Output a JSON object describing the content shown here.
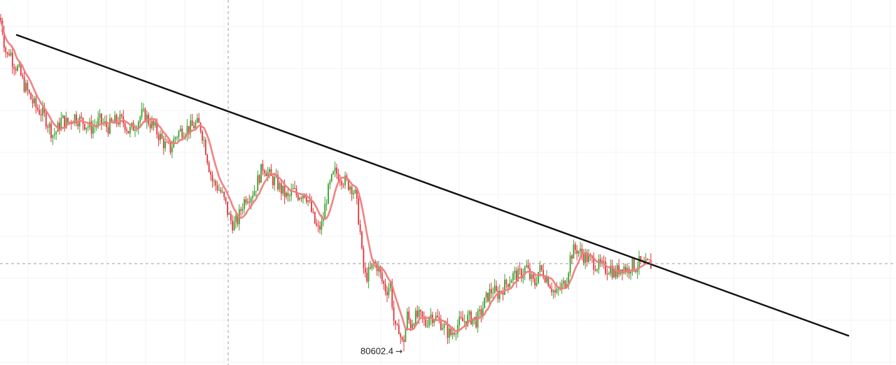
{
  "chart_data": {
    "type": "candlestick",
    "grid": true,
    "colors": {
      "up": "#3aa02c",
      "down": "#e0333b",
      "moving_average": "#f07c7c",
      "trendline": "#111111",
      "crosshair": "#9a9ea6"
    },
    "y_range": [
      80000,
      96200
    ],
    "price_path": [
      [
        0,
        95400
      ],
      [
        3,
        95050
      ],
      [
        6,
        94300
      ],
      [
        10,
        93650
      ],
      [
        14,
        94000
      ],
      [
        18,
        93500
      ],
      [
        22,
        93300
      ],
      [
        28,
        93000
      ],
      [
        34,
        92450
      ],
      [
        40,
        92100
      ],
      [
        46,
        91700
      ],
      [
        52,
        91400
      ],
      [
        58,
        91250
      ],
      [
        64,
        91000
      ],
      [
        70,
        90600
      ],
      [
        76,
        90200
      ],
      [
        82,
        90450
      ],
      [
        88,
        90900
      ],
      [
        94,
        90750
      ],
      [
        100,
        90800
      ],
      [
        106,
        91050
      ],
      [
        112,
        90900
      ],
      [
        118,
        90800
      ],
      [
        124,
        90650
      ],
      [
        130,
        90500
      ],
      [
        136,
        90650
      ],
      [
        142,
        90850
      ],
      [
        148,
        90700
      ],
      [
        154,
        90550
      ],
      [
        160,
        90700
      ],
      [
        166,
        90850
      ],
      [
        172,
        90850
      ],
      [
        178,
        90750
      ],
      [
        184,
        90350
      ],
      [
        190,
        90550
      ],
      [
        196,
        90800
      ],
      [
        202,
        91100
      ],
      [
        208,
        91050
      ],
      [
        214,
        90750
      ],
      [
        220,
        90550
      ],
      [
        226,
        90250
      ],
      [
        232,
        89950
      ],
      [
        238,
        89650
      ],
      [
        244,
        89600
      ],
      [
        250,
        90100
      ],
      [
        256,
        90350
      ],
      [
        262,
        90450
      ],
      [
        268,
        90500
      ],
      [
        274,
        90550
      ],
      [
        280,
        90700
      ],
      [
        286,
        90600
      ],
      [
        292,
        89900
      ],
      [
        298,
        88900
      ],
      [
        304,
        88100
      ],
      [
        310,
        87950
      ],
      [
        316,
        87650
      ],
      [
        322,
        87150
      ],
      [
        328,
        86500
      ],
      [
        334,
        86200
      ],
      [
        340,
        86450
      ],
      [
        346,
        87100
      ],
      [
        352,
        87500
      ],
      [
        358,
        87550
      ],
      [
        364,
        87800
      ],
      [
        370,
        88350
      ],
      [
        376,
        88850
      ],
      [
        382,
        88550
      ],
      [
        388,
        88250
      ],
      [
        394,
        88150
      ],
      [
        400,
        87850
      ],
      [
        406,
        87600
      ],
      [
        412,
        87350
      ],
      [
        418,
        87750
      ],
      [
        424,
        87550
      ],
      [
        430,
        87600
      ],
      [
        436,
        87650
      ],
      [
        442,
        87150
      ],
      [
        448,
        86450
      ],
      [
        454,
        85950
      ],
      [
        460,
        86250
      ],
      [
        466,
        87350
      ],
      [
        472,
        88050
      ],
      [
        478,
        88550
      ],
      [
        484,
        88450
      ],
      [
        490,
        88250
      ],
      [
        496,
        88050
      ],
      [
        502,
        87950
      ],
      [
        508,
        87500
      ],
      [
        514,
        86100
      ],
      [
        518,
        84500
      ],
      [
        522,
        83900
      ],
      [
        528,
        84100
      ],
      [
        534,
        84550
      ],
      [
        540,
        84350
      ],
      [
        546,
        83700
      ],
      [
        552,
        83300
      ],
      [
        558,
        83600
      ],
      [
        562,
        82100
      ],
      [
        566,
        81350
      ],
      [
        570,
        81700
      ],
      [
        574,
        80900
      ],
      [
        578,
        81250
      ],
      [
        582,
        82250
      ],
      [
        586,
        81750
      ],
      [
        590,
        82050
      ],
      [
        596,
        82150
      ],
      [
        602,
        82100
      ],
      [
        608,
        81800
      ],
      [
        614,
        82250
      ],
      [
        620,
        82150
      ],
      [
        626,
        82000
      ],
      [
        632,
        81800
      ],
      [
        638,
        81500
      ],
      [
        644,
        81350
      ],
      [
        650,
        81650
      ],
      [
        656,
        81850
      ],
      [
        662,
        81950
      ],
      [
        668,
        82050
      ],
      [
        674,
        82100
      ],
      [
        680,
        81950
      ],
      [
        686,
        82250
      ],
      [
        692,
        82750
      ],
      [
        698,
        83150
      ],
      [
        704,
        83350
      ],
      [
        710,
        83100
      ],
      [
        716,
        83350
      ],
      [
        722,
        83550
      ],
      [
        728,
        83800
      ],
      [
        734,
        84000
      ],
      [
        740,
        83950
      ],
      [
        746,
        84100
      ],
      [
        752,
        84350
      ],
      [
        758,
        83800
      ],
      [
        764,
        83600
      ],
      [
        770,
        84250
      ],
      [
        776,
        84100
      ],
      [
        782,
        83850
      ],
      [
        788,
        83450
      ],
      [
        794,
        83100
      ],
      [
        800,
        83400
      ],
      [
        806,
        83600
      ],
      [
        810,
        83900
      ],
      [
        814,
        84700
      ],
      [
        818,
        85050
      ],
      [
        824,
        85150
      ],
      [
        830,
        84950
      ],
      [
        836,
        84800
      ],
      [
        842,
        84650
      ],
      [
        848,
        84550
      ],
      [
        854,
        84400
      ],
      [
        860,
        84350
      ],
      [
        866,
        84250
      ],
      [
        872,
        84350
      ],
      [
        878,
        84000
      ],
      [
        884,
        84250
      ],
      [
        890,
        84400
      ],
      [
        896,
        84200
      ],
      [
        902,
        84450
      ],
      [
        908,
        84350
      ],
      [
        914,
        84550
      ],
      [
        920,
        84300
      ],
      [
        926,
        84500
      ],
      [
        930,
        84450
      ]
    ],
    "trendline": {
      "from": [
        24,
        94650
      ],
      "to": [
        1212,
        81300
      ]
    },
    "crosshair": {
      "x": 326,
      "price": 84500
    },
    "low_annotation": {
      "label": "80602.4",
      "x": 578,
      "price": 80602.4
    }
  }
}
